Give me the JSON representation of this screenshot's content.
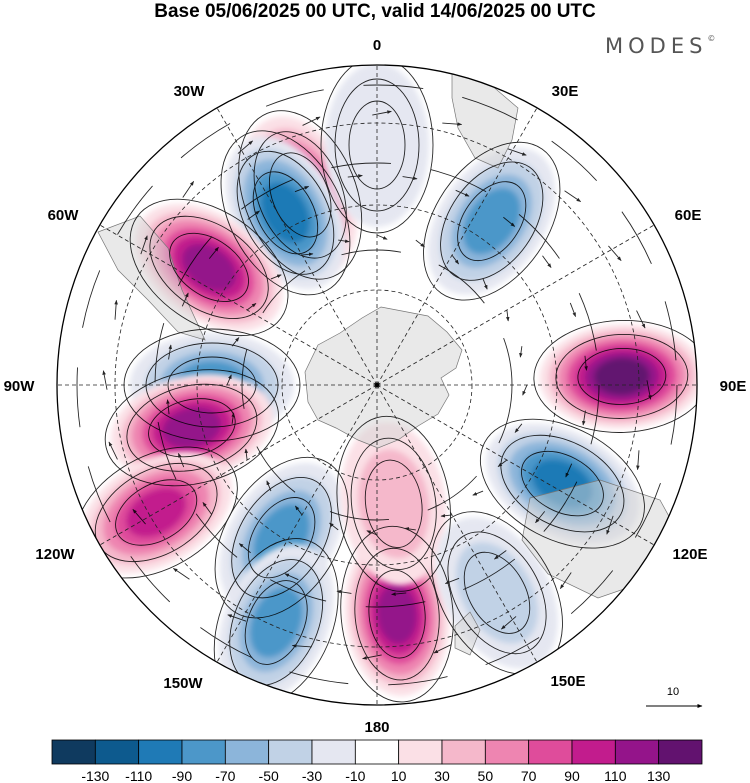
{
  "header": {
    "title": "Base 05/06/2025 00 UTC, valid 14/06/2025 00 UTC",
    "brand": "MODES",
    "brand_mark": "©"
  },
  "map": {
    "projection": "polar-stereographic-south",
    "longitude_labels": {
      "top": "0",
      "top_right": "30E",
      "right_upper": "60E",
      "right": "90E",
      "right_lower": "120E",
      "bottom_right": "150E",
      "bottom": "180",
      "bottom_left": "150W",
      "left_lower": "120W",
      "left": "90W",
      "left_upper": "60W",
      "top_left": "30W"
    },
    "vector_reference": "10",
    "anomaly_centers": [
      {
        "lon": -22,
        "sign": "positive",
        "magnitude": 100
      },
      {
        "lon": 0,
        "sign": "negative",
        "magnitude": 20
      },
      {
        "lon": -28,
        "sign": "negative",
        "magnitude": 90
      },
      {
        "lon": -55,
        "sign": "positive",
        "magnitude": 110
      },
      {
        "lon": 35,
        "sign": "negative",
        "magnitude": 70
      },
      {
        "lon": 88,
        "sign": "positive",
        "magnitude": 130
      },
      {
        "lon": -90,
        "sign": "negative",
        "magnitude": 80
      },
      {
        "lon": -103,
        "sign": "positive",
        "magnitude": 110
      },
      {
        "lon": -120,
        "sign": "positive",
        "magnitude": 100
      },
      {
        "lon": 118,
        "sign": "negative",
        "magnitude": 90
      },
      {
        "lon": -148,
        "sign": "negative",
        "magnitude": 70
      },
      {
        "lon": -157,
        "sign": "negative",
        "magnitude": 80
      },
      {
        "lon": 175,
        "sign": "positive",
        "magnitude": 110
      },
      {
        "lon": 172,
        "sign": "positive",
        "magnitude": 40
      },
      {
        "lon": 150,
        "sign": "negative",
        "magnitude": 30
      }
    ]
  },
  "colorbar": {
    "labels": [
      "-130",
      "-110",
      "-90",
      "-70",
      "-50",
      "-30",
      "-10",
      "10",
      "30",
      "50",
      "70",
      "90",
      "110",
      "130"
    ],
    "colors": [
      "#0f3a5f",
      "#0d5a8e",
      "#1f7ab6",
      "#4c97c9",
      "#8cb5da",
      "#c1d2e6",
      "#e5e7f1",
      "#ffffff",
      "#fbe0e6",
      "#f5b8cb",
      "#ee85b1",
      "#df4c9b",
      "#c21c8d",
      "#94148a",
      "#62126f"
    ]
  }
}
